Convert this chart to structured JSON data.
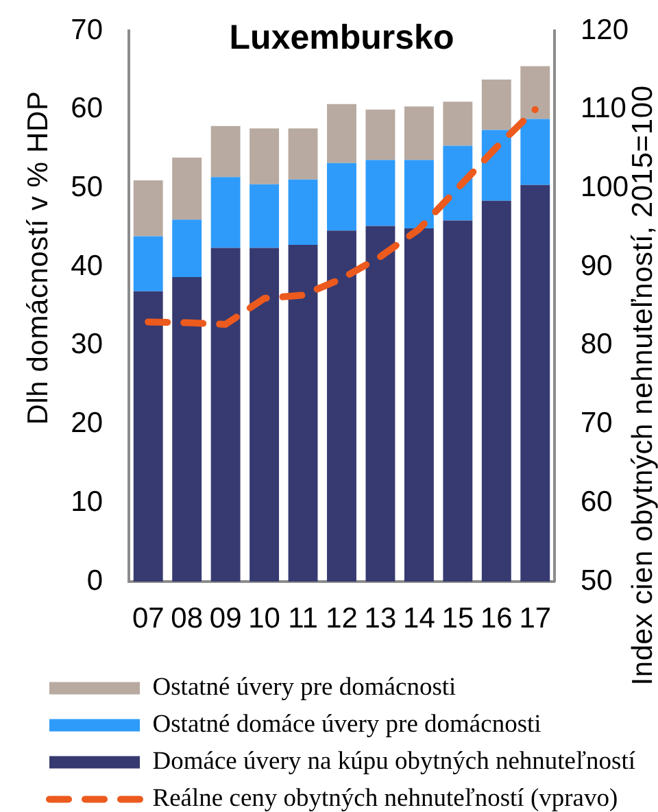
{
  "chart_data": {
    "type": "bar",
    "stacked": true,
    "title": "Luxembursko",
    "ylabel": "Dlh domácností v % HDP",
    "y2label": "Index cien obytných nehnuteľností, 2015=100",
    "categories": [
      "07",
      "08",
      "09",
      "10",
      "11",
      "12",
      "13",
      "14",
      "15",
      "16",
      "17"
    ],
    "series": [
      {
        "name": "Domáce úvery na kúpu obytných nehnuteľností",
        "color": "#363a70",
        "values": [
          36.9,
          38.7,
          42.4,
          42.4,
          42.8,
          44.6,
          45.2,
          44.9,
          45.9,
          48.4,
          50.4
        ]
      },
      {
        "name": "Ostatné domáce úvery pre domácnosti",
        "color": "#2e9bfa",
        "values": [
          7.0,
          7.3,
          9.0,
          8.1,
          8.3,
          8.6,
          8.4,
          8.7,
          9.5,
          9.0,
          8.4
        ]
      },
      {
        "name": "Ostatné úvery pre domácnosti",
        "color": "#b8aaa0",
        "values": [
          7.1,
          7.9,
          6.5,
          7.1,
          6.5,
          7.5,
          6.4,
          6.8,
          5.6,
          6.4,
          6.7
        ]
      },
      {
        "name": "Reálne ceny obytných nehnuteľností (vpravo)",
        "type": "line",
        "axis": "y2",
        "color": "#ec5a1e",
        "line_style": "dashed",
        "marker": "none",
        "values": [
          83.0,
          82.9,
          82.7,
          86.0,
          86.4,
          88.5,
          91.3,
          94.8,
          100.0,
          105.2,
          110.0
        ]
      }
    ],
    "ylim": [
      0,
      70
    ],
    "yticks": [
      0,
      10,
      20,
      30,
      40,
      50,
      60,
      70
    ],
    "y2lim": [
      50,
      120
    ],
    "y2ticks": [
      50,
      60,
      70,
      80,
      90,
      100,
      110,
      120
    ],
    "grid": false,
    "legend": "bottom"
  }
}
